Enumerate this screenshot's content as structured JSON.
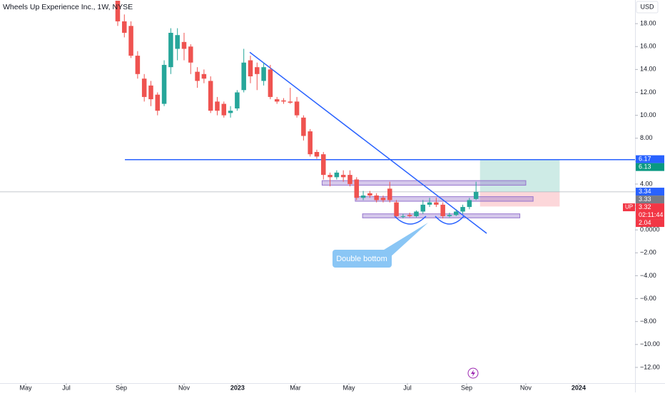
{
  "chart_data": {
    "type": "candlestick",
    "title": "Wheels Up Experience Inc., 1W, NYSE",
    "currency": "USD",
    "up_color": "#26a69a",
    "down_color": "#ef5350",
    "x": [
      0,
      1,
      2,
      3,
      4,
      5,
      6,
      7,
      8,
      9,
      10,
      11,
      12,
      13,
      14,
      15,
      16,
      17,
      18,
      19,
      20,
      21,
      22,
      23,
      24,
      25,
      26,
      27,
      28,
      29,
      30,
      31,
      32,
      33,
      34,
      35,
      36,
      37,
      38,
      39,
      40,
      41,
      42,
      43,
      44,
      45,
      46,
      47,
      48,
      49,
      50,
      51,
      52,
      53,
      54
    ],
    "open": [
      20,
      18.2,
      17.8,
      15.2,
      13.2,
      12.6,
      11.8,
      11,
      14.2,
      15.8,
      16.4,
      16,
      13.8,
      13.6,
      13,
      11.2,
      11,
      10.2,
      10.6,
      12.2,
      14.8,
      14.2,
      13,
      14,
      11.4,
      11.3,
      11.2,
      11.2,
      9.8,
      8.6,
      6.8,
      6.6,
      4.8,
      4.6,
      4.8,
      4.8,
      4.4,
      2.8,
      3.2,
      3,
      2.8,
      3.6,
      2.4,
      1.2,
      1.3,
      1.2,
      1.6,
      2.2,
      2.4,
      2.2,
      1.2,
      1.3,
      1.6,
      2,
      2.7
    ],
    "high": [
      20,
      18.8,
      18.2,
      15.6,
      13.6,
      13,
      12,
      14.8,
      17.6,
      17.6,
      17.2,
      16.2,
      14.2,
      14,
      13.4,
      11.6,
      11.2,
      10.8,
      12.2,
      15.8,
      15.2,
      14.6,
      14.6,
      14.4,
      11.6,
      11.5,
      12.4,
      11.6,
      10,
      8.8,
      7,
      6.8,
      5,
      5.2,
      5.2,
      5.2,
      4.6,
      3.4,
      3.4,
      3.2,
      3,
      4.2,
      2.6,
      1.4,
      1.5,
      1.7,
      2.6,
      2.8,
      2.8,
      2.4,
      1.5,
      1.8,
      2.2,
      2.8,
      4.2
    ],
    "low": [
      17.8,
      16.8,
      15,
      13.2,
      11.2,
      10.8,
      10,
      10.8,
      13.6,
      14.8,
      14.8,
      13.6,
      12.4,
      12.8,
      10.2,
      10,
      9.8,
      9.8,
      10.4,
      12,
      12.8,
      12.2,
      12.6,
      11.4,
      11,
      11,
      11,
      9.8,
      7.8,
      6.4,
      6.2,
      4.4,
      3.8,
      4.4,
      4.2,
      3.8,
      2.6,
      2.6,
      2.8,
      2.4,
      2.4,
      2.4,
      1,
      1,
      1.1,
      1.1,
      1.4,
      2,
      2,
      1,
      1.1,
      1.2,
      1.4,
      1.8,
      2.6
    ],
    "close": [
      18.2,
      17.2,
      15.2,
      13.6,
      11.6,
      11.4,
      10.4,
      14.4,
      17.2,
      17,
      15.8,
      14.6,
      13,
      13.2,
      10.4,
      10.4,
      10,
      10.4,
      12,
      14.6,
      13.4,
      13.6,
      14.2,
      11.6,
      11.2,
      11.2,
      11.1,
      10,
      8.2,
      6.6,
      6.4,
      4.8,
      4.6,
      5,
      4.6,
      4,
      2.8,
      3,
      3,
      2.6,
      2.6,
      2.6,
      1.2,
      1.2,
      1.2,
      1.6,
      2.2,
      2.4,
      2.2,
      1.2,
      1.3,
      1.6,
      2,
      2.6,
      3.32
    ],
    "xlim": [
      -17.74,
      77.96
    ],
    "ylim": [
      -13.375,
      20.0625
    ],
    "xticks": [
      {
        "value": -13.87,
        "label": "May"
      },
      {
        "value": -7.74,
        "label": "Jul"
      },
      {
        "value": 0.54,
        "label": "Sep"
      },
      {
        "value": 10,
        "label": "Nov"
      },
      {
        "value": 18.06,
        "label": "2023"
      },
      {
        "value": 26.77,
        "label": "Mar"
      },
      {
        "value": 34.84,
        "label": "May"
      },
      {
        "value": 43.66,
        "label": "Jul"
      },
      {
        "value": 52.58,
        "label": "Sep"
      },
      {
        "value": 61.5,
        "label": "Nov"
      },
      {
        "value": 69.46,
        "label": "2024"
      }
    ],
    "yticks": [
      {
        "value": 18,
        "label": "18.00"
      },
      {
        "value": 16,
        "label": "16.00"
      },
      {
        "value": 14,
        "label": "14.00"
      },
      {
        "value": 12,
        "label": "12.00"
      },
      {
        "value": 10,
        "label": "10.00"
      },
      {
        "value": 8,
        "label": "8.00"
      },
      {
        "value": 6,
        "label": "6.00"
      },
      {
        "value": 4,
        "label": "4.00"
      },
      {
        "value": 2,
        "label": "2.00"
      },
      {
        "value": 0,
        "label": "0.0000"
      },
      {
        "value": -2,
        "label": "−2.00"
      },
      {
        "value": -4,
        "label": "−4.00"
      },
      {
        "value": -6,
        "label": "−6.00"
      },
      {
        "value": -8,
        "label": "−8.00"
      },
      {
        "value": -10,
        "label": "−10.00"
      },
      {
        "value": -12,
        "label": "−12.00"
      }
    ],
    "hline": {
      "value": 6.13,
      "x0": 1.08,
      "color": "#2962ff"
    },
    "trendline": {
      "x": [
        19.9,
        55.6
      ],
      "y": [
        15.5,
        -0.3
      ],
      "color": "#2962ff"
    },
    "zones": [
      {
        "x0": 30.8,
        "x1": 61.5,
        "y0": 3.9,
        "y1": 4.3
      },
      {
        "x0": 35.8,
        "x1": 62.6,
        "y0": 2.5,
        "y1": 2.9
      },
      {
        "x0": 36.9,
        "x1": 60.6,
        "y0": 1.05,
        "y1": 1.4
      }
    ],
    "position": {
      "x0": 54.6,
      "x1": 66.6,
      "entry": 3.33,
      "target": 6.17,
      "stop": 2.04
    },
    "last_price": 3.32,
    "price_labels": [
      {
        "value": 6.17,
        "color": "#2962ff"
      },
      {
        "value": 6.13,
        "color": "#089981"
      },
      {
        "value": 3.34,
        "color": "#2962ff"
      },
      {
        "value": 3.33,
        "color": "#787b86"
      },
      {
        "value": 3.32,
        "color": "#f23645",
        "symbol": "UP",
        "countdown": "02:11:44"
      },
      {
        "value": 2.04,
        "color": "#f23645"
      }
    ],
    "annotation": "Double bottom"
  }
}
